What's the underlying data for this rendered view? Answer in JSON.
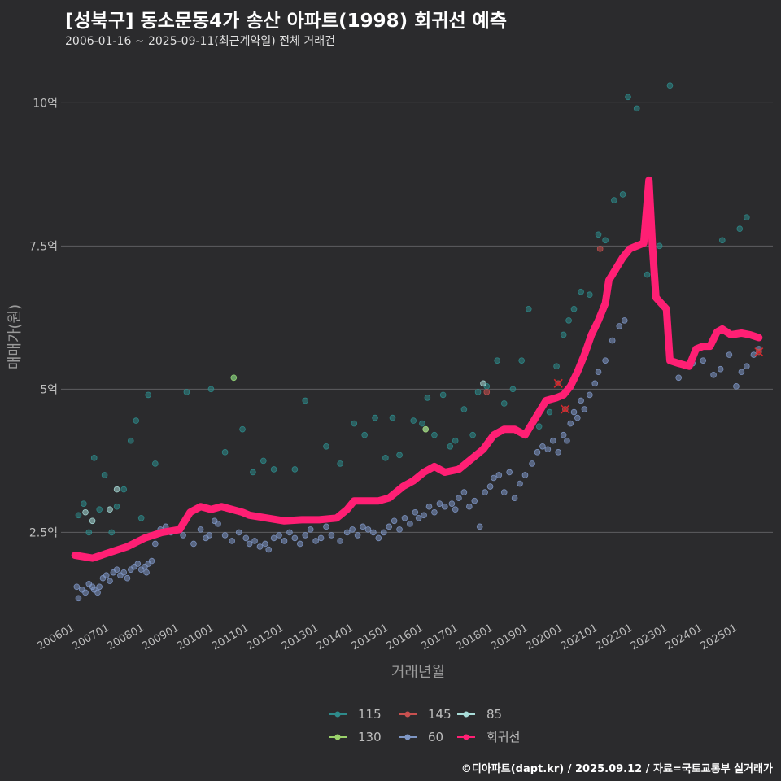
{
  "header": {
    "title": "[성북구] 동소문동4가 송산 아파트(1998) 회귀선 예측",
    "subtitle": "2006-01-16 ~ 2025-09-11(최근계약일) 전체 거래건"
  },
  "footer": {
    "credit": "©디아파트(dapt.kr) / 2025.09.12 / 자료=국토교통부 실거래가"
  },
  "chart_data": {
    "type": "scatter",
    "title": "[성북구] 동소문동4가 송산 아파트(1998) 회귀선 예측",
    "xlabel": "거래년월",
    "ylabel": "매매가(원)",
    "ylim": [
      1.0,
      10.8
    ],
    "xlim": [
      2005.6,
      2026.0
    ],
    "y_ticks": [
      {
        "value": 2.5,
        "label": "2.5억"
      },
      {
        "value": 5.0,
        "label": "5억"
      },
      {
        "value": 7.5,
        "label": "7.5억"
      },
      {
        "value": 10.0,
        "label": "10억"
      }
    ],
    "x_ticks": [
      {
        "value": 2006.0,
        "label": "200601"
      },
      {
        "value": 2007.0,
        "label": "200701"
      },
      {
        "value": 2008.0,
        "label": "200801"
      },
      {
        "value": 2009.0,
        "label": "200901"
      },
      {
        "value": 2010.0,
        "label": "201001"
      },
      {
        "value": 2011.0,
        "label": "201101"
      },
      {
        "value": 2012.0,
        "label": "201201"
      },
      {
        "value": 2013.0,
        "label": "201301"
      },
      {
        "value": 2014.0,
        "label": "201401"
      },
      {
        "value": 2015.0,
        "label": "201501"
      },
      {
        "value": 2016.0,
        "label": "201601"
      },
      {
        "value": 2017.0,
        "label": "201701"
      },
      {
        "value": 2018.0,
        "label": "201801"
      },
      {
        "value": 2019.0,
        "label": "201901"
      },
      {
        "value": 2020.0,
        "label": "202001"
      },
      {
        "value": 2021.0,
        "label": "202101"
      },
      {
        "value": 2022.0,
        "label": "202201"
      },
      {
        "value": 2023.0,
        "label": "202301"
      },
      {
        "value": 2024.0,
        "label": "202401"
      },
      {
        "value": 2025.0,
        "label": "202501"
      }
    ],
    "legend": [
      {
        "name": "115",
        "color": "#2e8b8b"
      },
      {
        "name": "145",
        "color": "#c8504f"
      },
      {
        "name": "85",
        "color": "#a8dcd8"
      },
      {
        "name": "130",
        "color": "#9bd26b"
      },
      {
        "name": "60",
        "color": "#7e96c4"
      },
      {
        "name": "회귀선",
        "color": "#ff1f74"
      }
    ],
    "series": [
      {
        "name": "60",
        "color": "#7e96c4",
        "points": [
          [
            2006.05,
            1.55
          ],
          [
            2006.1,
            1.35
          ],
          [
            2006.2,
            1.5
          ],
          [
            2006.3,
            1.45
          ],
          [
            2006.4,
            1.6
          ],
          [
            2006.5,
            1.55
          ],
          [
            2006.55,
            1.5
          ],
          [
            2006.65,
            1.45
          ],
          [
            2006.7,
            1.55
          ],
          [
            2006.8,
            1.7
          ],
          [
            2006.9,
            1.75
          ],
          [
            2007.0,
            1.65
          ],
          [
            2007.1,
            1.8
          ],
          [
            2007.2,
            1.85
          ],
          [
            2007.3,
            1.75
          ],
          [
            2007.4,
            1.8
          ],
          [
            2007.5,
            1.7
          ],
          [
            2007.6,
            1.85
          ],
          [
            2007.7,
            1.9
          ],
          [
            2007.8,
            1.95
          ],
          [
            2007.9,
            1.85
          ],
          [
            2008.0,
            1.9
          ],
          [
            2008.05,
            1.8
          ],
          [
            2008.1,
            1.95
          ],
          [
            2008.2,
            2.0
          ],
          [
            2008.3,
            2.3
          ],
          [
            2008.45,
            2.55
          ],
          [
            2008.6,
            2.6
          ],
          [
            2008.75,
            2.5
          ],
          [
            2009.1,
            2.45
          ],
          [
            2009.4,
            2.3
          ],
          [
            2009.6,
            2.55
          ],
          [
            2009.75,
            2.4
          ],
          [
            2009.85,
            2.45
          ],
          [
            2010.0,
            2.7
          ],
          [
            2010.1,
            2.65
          ],
          [
            2010.3,
            2.45
          ],
          [
            2010.5,
            2.35
          ],
          [
            2010.7,
            2.5
          ],
          [
            2010.9,
            2.4
          ],
          [
            2011.0,
            2.3
          ],
          [
            2011.15,
            2.35
          ],
          [
            2011.3,
            2.25
          ],
          [
            2011.45,
            2.3
          ],
          [
            2011.55,
            2.2
          ],
          [
            2011.7,
            2.4
          ],
          [
            2011.85,
            2.45
          ],
          [
            2012.0,
            2.35
          ],
          [
            2012.15,
            2.5
          ],
          [
            2012.3,
            2.4
          ],
          [
            2012.45,
            2.3
          ],
          [
            2012.6,
            2.45
          ],
          [
            2012.75,
            2.55
          ],
          [
            2012.9,
            2.35
          ],
          [
            2013.05,
            2.4
          ],
          [
            2013.2,
            2.6
          ],
          [
            2013.35,
            2.45
          ],
          [
            2013.6,
            2.35
          ],
          [
            2013.8,
            2.5
          ],
          [
            2013.95,
            2.55
          ],
          [
            2014.1,
            2.45
          ],
          [
            2014.25,
            2.6
          ],
          [
            2014.4,
            2.55
          ],
          [
            2014.55,
            2.5
          ],
          [
            2014.7,
            2.4
          ],
          [
            2014.85,
            2.5
          ],
          [
            2015.0,
            2.6
          ],
          [
            2015.15,
            2.7
          ],
          [
            2015.3,
            2.55
          ],
          [
            2015.45,
            2.75
          ],
          [
            2015.6,
            2.65
          ],
          [
            2015.75,
            2.85
          ],
          [
            2015.85,
            2.75
          ],
          [
            2016.0,
            2.8
          ],
          [
            2016.15,
            2.95
          ],
          [
            2016.3,
            2.85
          ],
          [
            2016.45,
            3.0
          ],
          [
            2016.6,
            2.95
          ],
          [
            2016.8,
            3.0
          ],
          [
            2016.9,
            2.9
          ],
          [
            2017.0,
            3.1
          ],
          [
            2017.15,
            3.2
          ],
          [
            2017.3,
            2.95
          ],
          [
            2017.45,
            3.05
          ],
          [
            2017.6,
            2.6
          ],
          [
            2017.75,
            3.2
          ],
          [
            2017.9,
            3.3
          ],
          [
            2018.0,
            3.45
          ],
          [
            2018.15,
            3.5
          ],
          [
            2018.3,
            3.2
          ],
          [
            2018.45,
            3.55
          ],
          [
            2018.6,
            3.1
          ],
          [
            2018.75,
            3.35
          ],
          [
            2018.9,
            3.5
          ],
          [
            2019.1,
            3.7
          ],
          [
            2019.25,
            3.9
          ],
          [
            2019.4,
            4.0
          ],
          [
            2019.55,
            3.95
          ],
          [
            2019.7,
            4.1
          ],
          [
            2019.85,
            3.9
          ],
          [
            2020.0,
            4.2
          ],
          [
            2020.1,
            4.1
          ],
          [
            2020.2,
            4.4
          ],
          [
            2020.3,
            4.6
          ],
          [
            2020.4,
            4.5
          ],
          [
            2020.5,
            4.8
          ],
          [
            2020.6,
            4.65
          ],
          [
            2020.75,
            4.9
          ],
          [
            2020.9,
            5.1
          ],
          [
            2021.0,
            5.3
          ],
          [
            2021.2,
            5.5
          ],
          [
            2021.4,
            5.85
          ],
          [
            2021.6,
            6.1
          ],
          [
            2021.75,
            6.2
          ],
          [
            2023.3,
            5.2
          ],
          [
            2023.5,
            5.4
          ],
          [
            2023.7,
            5.45
          ],
          [
            2024.0,
            5.5
          ],
          [
            2024.3,
            5.25
          ],
          [
            2024.5,
            5.35
          ],
          [
            2024.75,
            5.6
          ],
          [
            2024.95,
            5.05
          ],
          [
            2025.1,
            5.3
          ],
          [
            2025.25,
            5.4
          ],
          [
            2025.45,
            5.6
          ],
          [
            2025.6,
            5.7
          ]
        ]
      },
      {
        "name": "115",
        "color": "#2e8b8b",
        "points": [
          [
            2006.1,
            2.8
          ],
          [
            2006.25,
            3.0
          ],
          [
            2006.4,
            2.5
          ],
          [
            2006.55,
            3.8
          ],
          [
            2006.7,
            2.9
          ],
          [
            2006.85,
            3.5
          ],
          [
            2007.05,
            2.5
          ],
          [
            2007.2,
            2.95
          ],
          [
            2007.4,
            3.25
          ],
          [
            2007.6,
            4.1
          ],
          [
            2007.75,
            4.45
          ],
          [
            2007.9,
            2.75
          ],
          [
            2008.1,
            4.9
          ],
          [
            2008.3,
            3.7
          ],
          [
            2009.2,
            4.95
          ],
          [
            2009.9,
            5.0
          ],
          [
            2010.3,
            3.9
          ],
          [
            2010.55,
            5.2
          ],
          [
            2010.8,
            4.3
          ],
          [
            2011.1,
            3.55
          ],
          [
            2011.4,
            3.75
          ],
          [
            2011.7,
            3.6
          ],
          [
            2012.3,
            3.6
          ],
          [
            2012.6,
            4.8
          ],
          [
            2013.2,
            4.0
          ],
          [
            2013.6,
            3.7
          ],
          [
            2014.0,
            4.4
          ],
          [
            2014.3,
            4.2
          ],
          [
            2014.6,
            4.5
          ],
          [
            2014.9,
            3.8
          ],
          [
            2015.1,
            4.5
          ],
          [
            2015.3,
            3.85
          ],
          [
            2015.7,
            4.45
          ],
          [
            2015.95,
            4.4
          ],
          [
            2016.1,
            4.85
          ],
          [
            2016.3,
            4.2
          ],
          [
            2016.55,
            4.9
          ],
          [
            2016.75,
            4.0
          ],
          [
            2016.9,
            4.1
          ],
          [
            2017.15,
            4.65
          ],
          [
            2017.4,
            4.2
          ],
          [
            2017.55,
            4.95
          ],
          [
            2017.8,
            5.05
          ],
          [
            2018.1,
            5.5
          ],
          [
            2018.3,
            4.75
          ],
          [
            2018.55,
            5.0
          ],
          [
            2018.8,
            5.5
          ],
          [
            2019.0,
            6.4
          ],
          [
            2019.3,
            4.35
          ],
          [
            2019.6,
            4.6
          ],
          [
            2019.8,
            5.4
          ],
          [
            2020.0,
            5.95
          ],
          [
            2020.15,
            6.2
          ],
          [
            2020.3,
            6.4
          ],
          [
            2020.5,
            6.7
          ],
          [
            2020.75,
            6.65
          ],
          [
            2021.0,
            7.7
          ],
          [
            2021.2,
            7.6
          ],
          [
            2021.45,
            8.3
          ],
          [
            2021.7,
            8.4
          ],
          [
            2021.85,
            10.1
          ],
          [
            2022.1,
            9.9
          ],
          [
            2022.4,
            7.0
          ],
          [
            2022.75,
            7.5
          ],
          [
            2023.05,
            10.3
          ],
          [
            2024.55,
            7.6
          ],
          [
            2025.05,
            7.8
          ],
          [
            2025.25,
            8.0
          ]
        ]
      },
      {
        "name": "145",
        "color": "#c8504f",
        "points": [
          [
            2017.8,
            4.95
          ],
          [
            2019.85,
            5.1
          ],
          [
            2020.05,
            4.65
          ],
          [
            2021.05,
            7.45
          ],
          [
            2025.6,
            5.65
          ]
        ]
      },
      {
        "name": "85",
        "color": "#a8dcd8",
        "points": [
          [
            2006.3,
            2.85
          ],
          [
            2006.5,
            2.7
          ],
          [
            2007.0,
            2.9
          ],
          [
            2007.2,
            3.25
          ],
          [
            2016.05,
            4.3
          ],
          [
            2017.7,
            5.1
          ]
        ]
      },
      {
        "name": "130",
        "color": "#9bd26b",
        "points": [
          [
            2010.55,
            5.2
          ],
          [
            2016.05,
            4.3
          ]
        ]
      }
    ],
    "regression": {
      "name": "회귀선",
      "color": "#ff1f74",
      "points": [
        [
          2006.0,
          2.1
        ],
        [
          2006.5,
          2.05
        ],
        [
          2007.0,
          2.15
        ],
        [
          2007.5,
          2.25
        ],
        [
          2008.0,
          2.4
        ],
        [
          2008.5,
          2.5
        ],
        [
          2009.0,
          2.55
        ],
        [
          2009.3,
          2.85
        ],
        [
          2009.6,
          2.95
        ],
        [
          2009.9,
          2.9
        ],
        [
          2010.2,
          2.95
        ],
        [
          2010.5,
          2.9
        ],
        [
          2010.8,
          2.85
        ],
        [
          2011.0,
          2.8
        ],
        [
          2011.5,
          2.75
        ],
        [
          2012.0,
          2.7
        ],
        [
          2012.5,
          2.72
        ],
        [
          2013.0,
          2.72
        ],
        [
          2013.5,
          2.75
        ],
        [
          2013.8,
          2.9
        ],
        [
          2014.0,
          3.05
        ],
        [
          2014.3,
          3.05
        ],
        [
          2014.7,
          3.05
        ],
        [
          2015.0,
          3.1
        ],
        [
          2015.4,
          3.3
        ],
        [
          2015.7,
          3.4
        ],
        [
          2016.0,
          3.55
        ],
        [
          2016.3,
          3.65
        ],
        [
          2016.6,
          3.55
        ],
        [
          2017.0,
          3.6
        ],
        [
          2017.3,
          3.75
        ],
        [
          2017.7,
          3.95
        ],
        [
          2018.0,
          4.2
        ],
        [
          2018.3,
          4.3
        ],
        [
          2018.6,
          4.3
        ],
        [
          2018.9,
          4.2
        ],
        [
          2019.2,
          4.5
        ],
        [
          2019.5,
          4.8
        ],
        [
          2019.8,
          4.85
        ],
        [
          2020.0,
          4.9
        ],
        [
          2020.2,
          5.05
        ],
        [
          2020.4,
          5.3
        ],
        [
          2020.6,
          5.6
        ],
        [
          2020.8,
          5.95
        ],
        [
          2021.0,
          6.2
        ],
        [
          2021.2,
          6.5
        ],
        [
          2021.3,
          6.9
        ],
        [
          2021.5,
          7.1
        ],
        [
          2021.7,
          7.3
        ],
        [
          2021.9,
          7.45
        ],
        [
          2022.1,
          7.5
        ],
        [
          2022.3,
          7.55
        ],
        [
          2022.45,
          8.65
        ],
        [
          2022.55,
          7.5
        ],
        [
          2022.65,
          6.6
        ],
        [
          2022.8,
          6.5
        ],
        [
          2022.95,
          6.4
        ],
        [
          2023.05,
          5.5
        ],
        [
          2023.3,
          5.45
        ],
        [
          2023.6,
          5.4
        ],
        [
          2023.8,
          5.7
        ],
        [
          2024.0,
          5.75
        ],
        [
          2024.2,
          5.75
        ],
        [
          2024.4,
          6.0
        ],
        [
          2024.55,
          6.05
        ],
        [
          2024.8,
          5.95
        ],
        [
          2025.1,
          5.98
        ],
        [
          2025.35,
          5.95
        ],
        [
          2025.6,
          5.9
        ]
      ]
    },
    "predicted_marks": [
      [
        2019.85,
        5.1
      ],
      [
        2020.05,
        4.65
      ],
      [
        2025.6,
        5.65
      ]
    ]
  }
}
